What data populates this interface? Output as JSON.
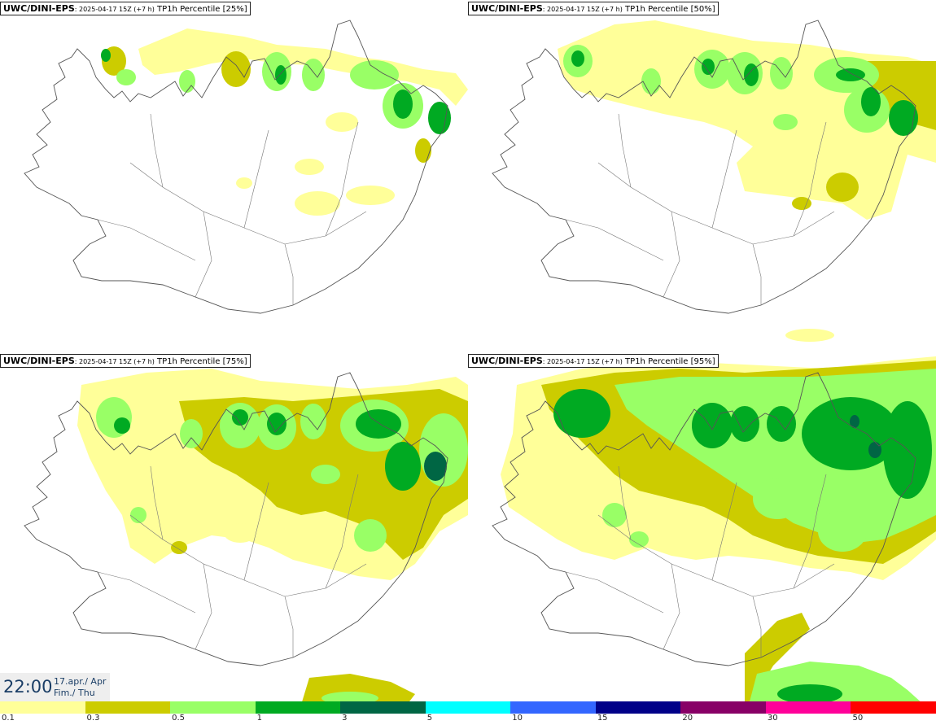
{
  "panels": [
    {
      "model": "UWC/DINI-EPS",
      "run": ": 2025-04-17 15Z (+7 h)",
      "label": " TP1h Percentile [25%]"
    },
    {
      "model": "UWC/DINI-EPS",
      "run": ": 2025-04-17 15Z (+7 h)",
      "label": " TP1h Percentile [50%]"
    },
    {
      "model": "UWC/DINI-EPS",
      "run": ": 2025-04-17 15Z (+7 h)",
      "label": " TP1h Percentile [75%]"
    },
    {
      "model": "UWC/DINI-EPS",
      "run": ": 2025-04-17 15Z (+7 h)",
      "label": " TP1h Percentile [95%]"
    }
  ],
  "clock": {
    "time": "22:00",
    "date_line1": "17.apr./ Apr",
    "date_line2": "Fim./ Thu"
  },
  "legend": {
    "colors": [
      "#ffff99",
      "#cccc00",
      "#99ff66",
      "#00aa22",
      "#006644",
      "#00ffff",
      "#3366ff",
      "#000088",
      "#880066",
      "#ff0099",
      "#ff0000"
    ],
    "ticks": [
      "0.1",
      "0.3",
      "0.5",
      "1",
      "3",
      "5",
      "10",
      "15",
      "20",
      "30",
      "50"
    ]
  }
}
